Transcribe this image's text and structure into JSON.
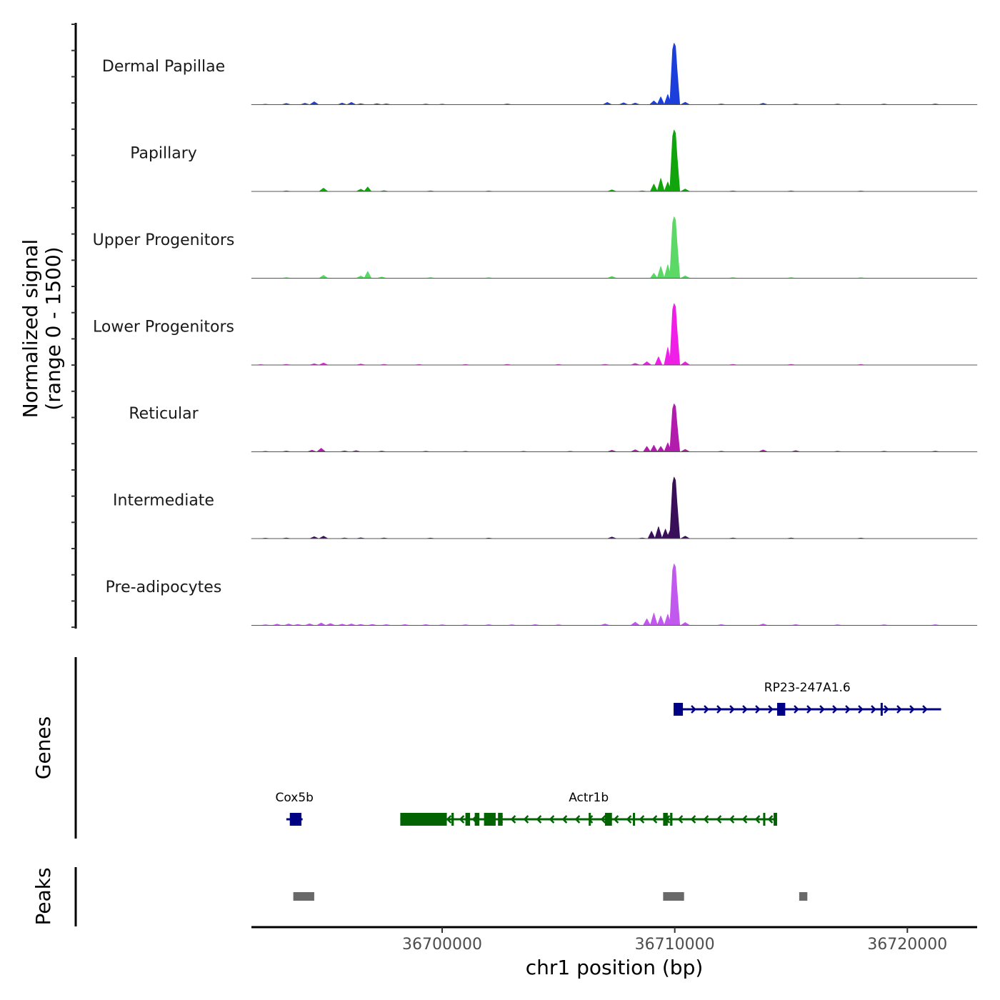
{
  "chart_data": {
    "type": "area",
    "title": "",
    "xlabel": "chr1 position (bp)",
    "ylabel_lines": [
      "Normalized signal",
      "(range 0 - 1500)"
    ],
    "x_range": [
      36691800,
      36723000
    ],
    "x_ticks": [
      36700000,
      36710000,
      36720000
    ],
    "x_tick_labels": [
      "36700000",
      "36710000",
      "36720000"
    ],
    "y_range": [
      0,
      1500
    ],
    "tracks": [
      {
        "name": "Dermal Papillae",
        "color": "#1c3fdc",
        "peaks": [
          [
            36692400,
            10
          ],
          [
            36693300,
            30
          ],
          [
            36694100,
            35
          ],
          [
            36694500,
            70
          ],
          [
            36695700,
            40
          ],
          [
            36696100,
            55
          ],
          [
            36696500,
            25
          ],
          [
            36697200,
            25
          ],
          [
            36697600,
            20
          ],
          [
            36699300,
            15
          ],
          [
            36700000,
            12
          ],
          [
            36702800,
            18
          ],
          [
            36707100,
            55
          ],
          [
            36707800,
            45
          ],
          [
            36708300,
            40
          ],
          [
            36709100,
            90
          ],
          [
            36709400,
            190
          ],
          [
            36709700,
            250
          ],
          [
            36710000,
            1500
          ],
          [
            36710450,
            60
          ],
          [
            36712000,
            18
          ],
          [
            36713800,
            35
          ],
          [
            36715200,
            18
          ],
          [
            36717000,
            15
          ],
          [
            36719000,
            15
          ],
          [
            36721200,
            18
          ]
        ]
      },
      {
        "name": "Papillary",
        "color": "#11a40c",
        "peaks": [
          [
            36693300,
            15
          ],
          [
            36694900,
            80
          ],
          [
            36696500,
            55
          ],
          [
            36696800,
            110
          ],
          [
            36697500,
            20
          ],
          [
            36699500,
            15
          ],
          [
            36702000,
            12
          ],
          [
            36707300,
            40
          ],
          [
            36708600,
            15
          ],
          [
            36709100,
            180
          ],
          [
            36709400,
            320
          ],
          [
            36709700,
            230
          ],
          [
            36710000,
            1500
          ],
          [
            36710450,
            60
          ],
          [
            36712500,
            15
          ],
          [
            36715000,
            15
          ],
          [
            36718000,
            12
          ]
        ]
      },
      {
        "name": "Upper Progenitors",
        "color": "#5bd865",
        "peaks": [
          [
            36693300,
            15
          ],
          [
            36694900,
            70
          ],
          [
            36696500,
            55
          ],
          [
            36696800,
            165
          ],
          [
            36697400,
            30
          ],
          [
            36699500,
            15
          ],
          [
            36702000,
            12
          ],
          [
            36707300,
            45
          ],
          [
            36709100,
            120
          ],
          [
            36709400,
            290
          ],
          [
            36709700,
            330
          ],
          [
            36710000,
            1500
          ],
          [
            36710450,
            60
          ],
          [
            36712500,
            15
          ],
          [
            36715000,
            15
          ],
          [
            36718000,
            12
          ]
        ]
      },
      {
        "name": "Lower Progenitors",
        "color": "#f01fe8",
        "peaks": [
          [
            36692200,
            10
          ],
          [
            36693300,
            15
          ],
          [
            36694500,
            30
          ],
          [
            36694900,
            50
          ],
          [
            36696500,
            25
          ],
          [
            36697500,
            15
          ],
          [
            36699000,
            12
          ],
          [
            36701000,
            12
          ],
          [
            36702800,
            15
          ],
          [
            36705000,
            12
          ],
          [
            36707000,
            15
          ],
          [
            36708300,
            40
          ],
          [
            36708800,
            80
          ],
          [
            36709300,
            200
          ],
          [
            36709700,
            430
          ],
          [
            36710000,
            1500
          ],
          [
            36710450,
            80
          ],
          [
            36712500,
            15
          ],
          [
            36715000,
            15
          ],
          [
            36718000,
            12
          ]
        ]
      },
      {
        "name": "Reticular",
        "color": "#b21cac",
        "peaks": [
          [
            36692400,
            12
          ],
          [
            36693300,
            20
          ],
          [
            36694400,
            40
          ],
          [
            36694800,
            85
          ],
          [
            36695800,
            25
          ],
          [
            36696300,
            30
          ],
          [
            36697400,
            20
          ],
          [
            36699300,
            15
          ],
          [
            36701000,
            12
          ],
          [
            36703500,
            12
          ],
          [
            36705500,
            12
          ],
          [
            36707300,
            40
          ],
          [
            36708300,
            50
          ],
          [
            36708800,
            130
          ],
          [
            36709100,
            160
          ],
          [
            36709400,
            130
          ],
          [
            36709700,
            220
          ],
          [
            36710000,
            1170
          ],
          [
            36710450,
            60
          ],
          [
            36712000,
            15
          ],
          [
            36713800,
            45
          ],
          [
            36715200,
            30
          ],
          [
            36717000,
            15
          ],
          [
            36719000,
            15
          ],
          [
            36721200,
            18
          ]
        ]
      },
      {
        "name": "Intermediate",
        "color": "#3a0f5a",
        "peaks": [
          [
            36692400,
            10
          ],
          [
            36693300,
            15
          ],
          [
            36694500,
            45
          ],
          [
            36694900,
            60
          ],
          [
            36695800,
            15
          ],
          [
            36696500,
            20
          ],
          [
            36697500,
            15
          ],
          [
            36699500,
            12
          ],
          [
            36702000,
            12
          ],
          [
            36707300,
            40
          ],
          [
            36708600,
            15
          ],
          [
            36709000,
            180
          ],
          [
            36709300,
            290
          ],
          [
            36709600,
            230
          ],
          [
            36709800,
            200
          ],
          [
            36710000,
            1500
          ],
          [
            36710450,
            60
          ],
          [
            36712500,
            15
          ],
          [
            36715000,
            15
          ],
          [
            36718000,
            12
          ]
        ]
      },
      {
        "name": "Pre-adipocytes",
        "color": "#c259ee",
        "peaks": [
          [
            36692400,
            15
          ],
          [
            36692900,
            30
          ],
          [
            36693400,
            35
          ],
          [
            36693800,
            25
          ],
          [
            36694300,
            40
          ],
          [
            36694800,
            60
          ],
          [
            36695200,
            45
          ],
          [
            36695700,
            30
          ],
          [
            36696100,
            35
          ],
          [
            36696500,
            25
          ],
          [
            36697000,
            25
          ],
          [
            36697600,
            20
          ],
          [
            36698400,
            20
          ],
          [
            36699300,
            20
          ],
          [
            36700000,
            15
          ],
          [
            36701000,
            15
          ],
          [
            36702000,
            18
          ],
          [
            36703000,
            15
          ],
          [
            36704000,
            20
          ],
          [
            36705000,
            15
          ],
          [
            36707000,
            35
          ],
          [
            36708300,
            80
          ],
          [
            36708800,
            160
          ],
          [
            36709100,
            300
          ],
          [
            36709400,
            230
          ],
          [
            36709700,
            270
          ],
          [
            36710000,
            1500
          ],
          [
            36710450,
            70
          ],
          [
            36712000,
            20
          ],
          [
            36713800,
            35
          ],
          [
            36715200,
            20
          ],
          [
            36717000,
            15
          ],
          [
            36719000,
            15
          ],
          [
            36721200,
            18
          ]
        ]
      }
    ],
    "genes": [
      {
        "name": "RP23-247A1.6",
        "strand": "+",
        "color": "#000085",
        "start": 36709950,
        "end": 36721450,
        "exons": [
          [
            36709950,
            36710350
          ],
          [
            36714400,
            36714750
          ],
          [
            36718850,
            36718900
          ]
        ]
      },
      {
        "name": "Cox5b",
        "strand": "+",
        "color": "#000085",
        "start": 36693300,
        "end": 36694000,
        "exons": [
          [
            36693450,
            36693950
          ]
        ]
      },
      {
        "name": "Actr1b",
        "strand": "-",
        "color": "#016301",
        "start": 36698200,
        "end": 36714400,
        "exons": [
          [
            36698200,
            36700200
          ],
          [
            36700400,
            36700500
          ],
          [
            36701000,
            36701200
          ],
          [
            36701400,
            36701600
          ],
          [
            36701800,
            36702300
          ],
          [
            36702400,
            36702600
          ],
          [
            36706300,
            36706350
          ],
          [
            36707000,
            36707300
          ],
          [
            36708200,
            36708250
          ],
          [
            36709500,
            36709700
          ],
          [
            36709800,
            36709900
          ],
          [
            36713800,
            36713850
          ],
          [
            36714250,
            36714400
          ]
        ]
      }
    ],
    "peaks_track": [
      [
        36693600,
        36694500
      ],
      [
        36709500,
        36710400
      ],
      [
        36715350,
        36715700
      ]
    ]
  }
}
